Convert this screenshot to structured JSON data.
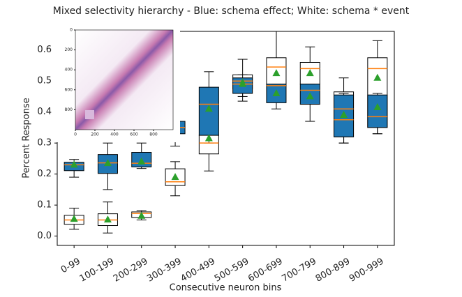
{
  "chart_data": {
    "type": "box",
    "title": "Mixed selectivity hierarchy - Blue: schema effect; White: schema * event",
    "x_label": "Consecutive neuron bins",
    "y_label": "Percent Response",
    "categories": [
      "0-99",
      "100-199",
      "200-299",
      "300-399",
      "400-499",
      "500-599",
      "600-699",
      "700-799",
      "800-899",
      "900-999"
    ],
    "ylim": [
      -0.03,
      0.66
    ],
    "yticks": [
      {
        "value": 0,
        "label": "0.0"
      },
      0.1,
      0.2,
      0.3,
      0.4,
      0.5,
      0.6
    ],
    "median_color": "#ff7f0e",
    "mean_color": "#2ca02c",
    "series": [
      {
        "color": "#ffffff",
        "whislo": [
          0.022,
          0.01,
          0.052,
          0.13,
          0.21,
          0.45,
          0.49,
          0.49,
          0.3,
          0.33
        ],
        "q1": [
          0.038,
          0.034,
          0.06,
          0.163,
          0.265,
          0.475,
          0.49,
          0.49,
          0.32,
          0.35
        ],
        "med": [
          0.052,
          0.052,
          0.073,
          0.175,
          0.3,
          0.5,
          0.545,
          0.54,
          0.41,
          0.54
        ],
        "q3": [
          0.067,
          0.072,
          0.078,
          0.217,
          0.325,
          0.52,
          0.575,
          0.56,
          0.465,
          0.575
        ],
        "whishi": [
          0.09,
          0.11,
          0.082,
          0.24,
          0.325,
          0.52,
          0.66,
          0.61,
          0.51,
          0.63
        ],
        "mean": [
          0.055,
          0.053,
          0.065,
          0.19,
          0.315,
          0.495,
          0.525,
          0.525,
          0.39,
          0.51
        ]
      },
      {
        "color": "#1f77b4",
        "whislo": [
          0.19,
          0.15,
          0.218,
          0.29,
          0.3,
          0.435,
          0.41,
          0.37,
          0.3,
          0.33
        ],
        "q1": [
          0.211,
          0.202,
          0.223,
          0.33,
          0.325,
          0.46,
          0.43,
          0.425,
          0.32,
          0.35
        ],
        "med": [
          0.23,
          0.236,
          0.235,
          0.35,
          0.425,
          0.49,
          0.485,
          0.47,
          0.375,
          0.385
        ],
        "q3": [
          0.238,
          0.263,
          0.27,
          0.37,
          0.48,
          0.51,
          0.49,
          0.49,
          0.455,
          0.455
        ],
        "whishi": [
          0.247,
          0.3,
          0.3,
          0.37,
          0.53,
          0.57,
          0.49,
          0.49,
          0.46,
          0.46
        ],
        "mean": [
          0.23,
          0.235,
          0.24,
          0.352,
          0.41,
          0.49,
          0.46,
          0.45,
          0.39,
          0.415
        ]
      }
    ],
    "inset": {
      "xlim": [
        0,
        1000
      ],
      "ylim": [
        0,
        1000
      ],
      "xticks": [
        0,
        200,
        400,
        600,
        800
      ],
      "yticks": [
        0,
        200,
        400,
        600,
        800
      ]
    }
  }
}
